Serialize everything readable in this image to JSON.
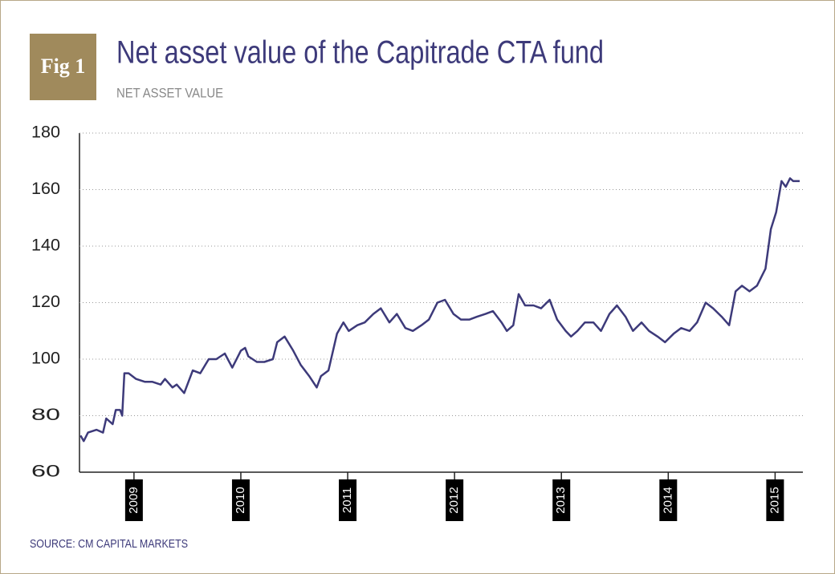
{
  "chart_data": {
    "type": "line",
    "badge": "Fig 1",
    "title": "Net asset value of the Capitrade CTA fund",
    "subtitle": "NET ASSET VALUE",
    "source": "SOURCE: CM CAPITAL MARKETS",
    "color": "#3d3a7a",
    "grid": true,
    "xlim": [
      2008.49,
      2015.26
    ],
    "xticks": [
      2009,
      2010,
      2011,
      2012,
      2013,
      2014,
      2015
    ],
    "ylim": [
      60,
      180
    ],
    "yticks": [
      60,
      80,
      100,
      120,
      140,
      160,
      180
    ],
    "x": [
      2008.5,
      2008.53,
      2008.57,
      2008.65,
      2008.71,
      2008.74,
      2008.8,
      2008.83,
      2008.87,
      2008.89,
      2008.91,
      2008.95,
      2009.02,
      2009.1,
      2009.17,
      2009.25,
      2009.29,
      2009.36,
      2009.4,
      2009.47,
      2009.55,
      2009.62,
      2009.7,
      2009.77,
      2009.85,
      2009.92,
      2010.0,
      2010.04,
      2010.07,
      2010.15,
      2010.22,
      2010.3,
      2010.34,
      2010.41,
      2010.49,
      2010.56,
      2010.64,
      2010.71,
      2010.75,
      2010.82,
      2010.9,
      2010.96,
      2011.01,
      2011.09,
      2011.16,
      2011.24,
      2011.31,
      2011.39,
      2011.46,
      2011.54,
      2011.61,
      2011.69,
      2011.76,
      2011.84,
      2011.91,
      2011.99,
      2012.06,
      2012.14,
      2012.21,
      2012.29,
      2012.36,
      2012.44,
      2012.49,
      2012.55,
      2012.6,
      2012.66,
      2012.74,
      2012.81,
      2012.89,
      2012.96,
      2013.04,
      2013.09,
      2013.15,
      2013.22,
      2013.3,
      2013.37,
      2013.45,
      2013.52,
      2013.6,
      2013.67,
      2013.75,
      2013.82,
      2013.9,
      2013.97,
      2014.05,
      2014.12,
      2014.2,
      2014.27,
      2014.35,
      2014.42,
      2014.5,
      2014.57,
      2014.63,
      2014.69,
      2014.76,
      2014.83,
      2014.91,
      2014.96,
      2015.01,
      2015.06,
      2015.1,
      2015.14,
      2015.17,
      2015.23
    ],
    "values": [
      73,
      71,
      74,
      75,
      74,
      79,
      77,
      82,
      82,
      80,
      95,
      95,
      93,
      92,
      92,
      91,
      93,
      90,
      91,
      88,
      96,
      95,
      100,
      100,
      102,
      97,
      103,
      104,
      101,
      99,
      99,
      100,
      106,
      108,
      103,
      98,
      94,
      90,
      94,
      96,
      109,
      113,
      110,
      112,
      113,
      116,
      118,
      113,
      116,
      111,
      110,
      112,
      114,
      120,
      121,
      116,
      114,
      114,
      115,
      116,
      117,
      113,
      110,
      112,
      123,
      119,
      119,
      118,
      121,
      114,
      110,
      108,
      110,
      113,
      113,
      110,
      116,
      119,
      115,
      110,
      113,
      110,
      108,
      106,
      109,
      111,
      110,
      113,
      120,
      118,
      115,
      112,
      124,
      126,
      124,
      126,
      132,
      146,
      152,
      163,
      161,
      164,
      163,
      163
    ]
  }
}
